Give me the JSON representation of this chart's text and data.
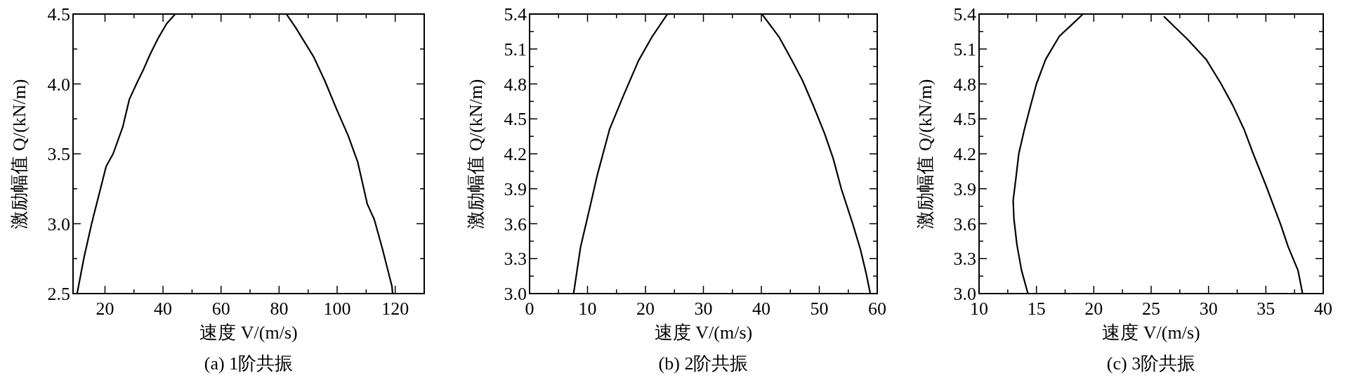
{
  "chart_data": [
    {
      "type": "line",
      "title": "(a) 1阶共振",
      "xlabel": "速度 V/(m/s)",
      "ylabel": "激励幅值 Q/(kN/m)",
      "xlim": [
        9,
        130
      ],
      "ylim": [
        2.5,
        4.5
      ],
      "xticks": [
        20,
        {
          "value": 30,
          "label": null
        },
        40,
        {
          "value": 50,
          "label": null
        },
        60,
        {
          "value": 70,
          "label": null
        },
        80,
        {
          "value": 90,
          "label": null
        },
        100,
        {
          "value": 110,
          "label": null
        },
        120
      ],
      "yticks": [
        2.5,
        {
          "value": 2.75,
          "label": null
        },
        {
          "value": 3,
          "label": "3.0"
        },
        {
          "value": 3.25,
          "label": null
        },
        3.5,
        {
          "value": 3.75,
          "label": null
        },
        {
          "value": 4,
          "label": "4.0"
        },
        {
          "value": 4.25,
          "label": null
        },
        4.5
      ],
      "series": [
        {
          "color": "#000000",
          "x": [
            10.4,
            12.8,
            15.4,
            20.4,
            22.8,
            26.1,
            28.4,
            31.3,
            33.2,
            35.5,
            38.4,
            41.2,
            44.2
          ],
          "values": [
            2.5,
            2.76,
            3.0,
            3.41,
            3.5,
            3.69,
            3.89,
            4.02,
            4.1,
            4.21,
            4.33,
            4.43,
            4.5
          ]
        },
        {
          "color": "#000000",
          "x": [
            82.5,
            85.8,
            92,
            95.8,
            100,
            103.8,
            107.1,
            110.4,
            112.8,
            115.6,
            118.9,
            119.1
          ],
          "values": [
            4.5,
            4.4,
            4.19,
            4.02,
            3.81,
            3.63,
            3.44,
            3.14,
            3.03,
            2.82,
            2.55,
            2.5
          ]
        }
      ]
    },
    {
      "type": "line",
      "title": "(b) 2阶共振",
      "xlabel": "速度 V/(m/s)",
      "ylabel": "激励幅值 Q/(kN/m)",
      "xlim": [
        0,
        60
      ],
      "ylim": [
        3.0,
        5.4
      ],
      "xticks": [
        0,
        {
          "value": 5,
          "label": null
        },
        10,
        {
          "value": 15,
          "label": null
        },
        20,
        {
          "value": 25,
          "label": null
        },
        30,
        {
          "value": 35,
          "label": null
        },
        40,
        {
          "value": 45,
          "label": null
        },
        50,
        {
          "value": 55,
          "label": null
        },
        60
      ],
      "yticks": [
        {
          "value": 3.0,
          "label": "3.0"
        },
        {
          "value": 3.15,
          "label": null
        },
        3.3,
        {
          "value": 3.45,
          "label": null
        },
        3.6,
        {
          "value": 3.75,
          "label": null
        },
        3.9,
        {
          "value": 4.05,
          "label": null
        },
        4.2,
        {
          "value": 4.35,
          "label": null
        },
        4.5,
        {
          "value": 4.65,
          "label": null
        },
        4.8,
        {
          "value": 4.95,
          "label": null
        },
        5.1,
        {
          "value": 5.25,
          "label": null
        },
        5.4
      ],
      "series": [
        {
          "color": "#000000",
          "x": [
            7.6,
            8.8,
            10.5,
            11.7,
            13.8,
            16.2,
            18.8,
            21.2,
            23.8
          ],
          "values": [
            3.0,
            3.4,
            3.76,
            4.02,
            4.41,
            4.7,
            5.0,
            5.21,
            5.4
          ]
        },
        {
          "color": "#000000",
          "x": [
            40.1,
            43.1,
            45.2,
            47.1,
            49.0,
            50.95,
            52.4,
            53.8,
            55.7,
            57.1,
            58.1,
            58.8
          ],
          "values": [
            5.4,
            5.2,
            5.01,
            4.83,
            4.61,
            4.37,
            4.16,
            3.9,
            3.61,
            3.38,
            3.17,
            3.0
          ]
        }
      ]
    },
    {
      "type": "line",
      "title": "(c) 3阶共振",
      "xlabel": "速度 V/(m/s)",
      "ylabel": "激励幅值 Q/(kN/m)",
      "xlim": [
        10,
        40
      ],
      "ylim": [
        3.0,
        5.4
      ],
      "xticks": [
        10,
        {
          "value": 12.5,
          "label": null
        },
        15,
        {
          "value": 17.5,
          "label": null
        },
        20,
        {
          "value": 22.5,
          "label": null
        },
        25,
        {
          "value": 27.5,
          "label": null
        },
        30,
        {
          "value": 32.5,
          "label": null
        },
        35,
        {
          "value": 37.5,
          "label": null
        },
        40
      ],
      "yticks": [
        {
          "value": 3.0,
          "label": "3.0"
        },
        {
          "value": 3.15,
          "label": null
        },
        3.3,
        {
          "value": 3.45,
          "label": null
        },
        3.6,
        {
          "value": 3.75,
          "label": null
        },
        3.9,
        {
          "value": 4.05,
          "label": null
        },
        4.2,
        {
          "value": 4.35,
          "label": null
        },
        4.5,
        {
          "value": 4.65,
          "label": null
        },
        4.8,
        {
          "value": 4.95,
          "label": null
        },
        5.1,
        {
          "value": 5.25,
          "label": null
        },
        5.4
      ],
      "series": [
        {
          "color": "#000000",
          "x": [
            14.26,
            13.7,
            13.3,
            13.04,
            12.97,
            13.2,
            13.46,
            13.95,
            14.4,
            15.0,
            15.8,
            17.0,
            18.1,
            19.06
          ],
          "values": [
            3.0,
            3.2,
            3.42,
            3.64,
            3.8,
            3.98,
            4.2,
            4.41,
            4.58,
            4.8,
            5.01,
            5.21,
            5.31,
            5.4
          ]
        },
        {
          "color": "#000000",
          "x": [
            26.1,
            28.2,
            29.8,
            31.1,
            32.1,
            33.1,
            33.9,
            35.0,
            36.3,
            36.95,
            37.8,
            38.2
          ],
          "values": [
            5.38,
            5.18,
            5.01,
            4.8,
            4.62,
            4.41,
            4.2,
            3.93,
            3.59,
            3.4,
            3.2,
            3.0
          ]
        }
      ]
    }
  ]
}
